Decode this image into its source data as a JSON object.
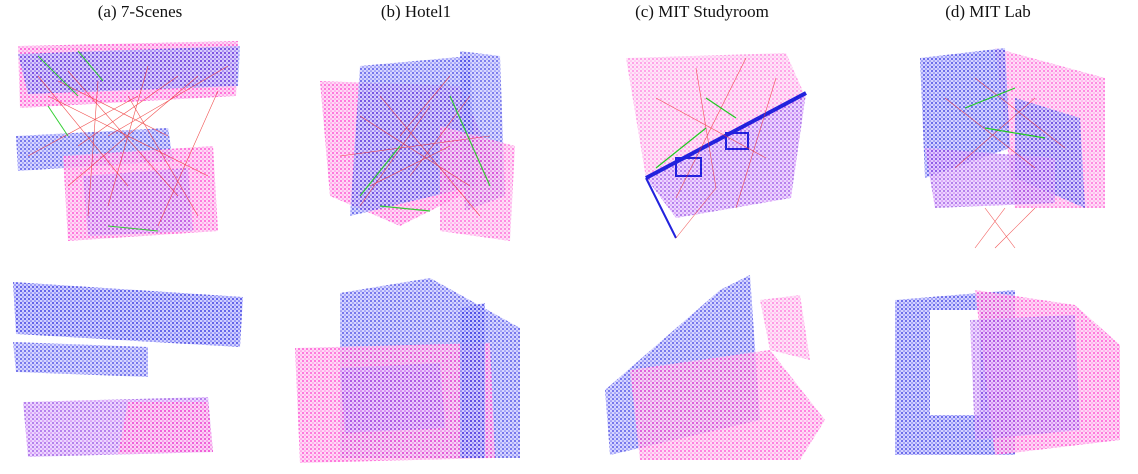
{
  "columns": [
    {
      "caption": "(a) 7-Scenes"
    },
    {
      "caption": "(b) Hotel1"
    },
    {
      "caption": "(c) MIT Studyroom"
    },
    {
      "caption": "(d) MIT Lab"
    }
  ],
  "colors": {
    "source_cloud": "#ff33cc",
    "target_cloud": "#2222dd",
    "inlier_correspondence": "#22cc22",
    "outlier_correspondence": "#ee3333"
  }
}
